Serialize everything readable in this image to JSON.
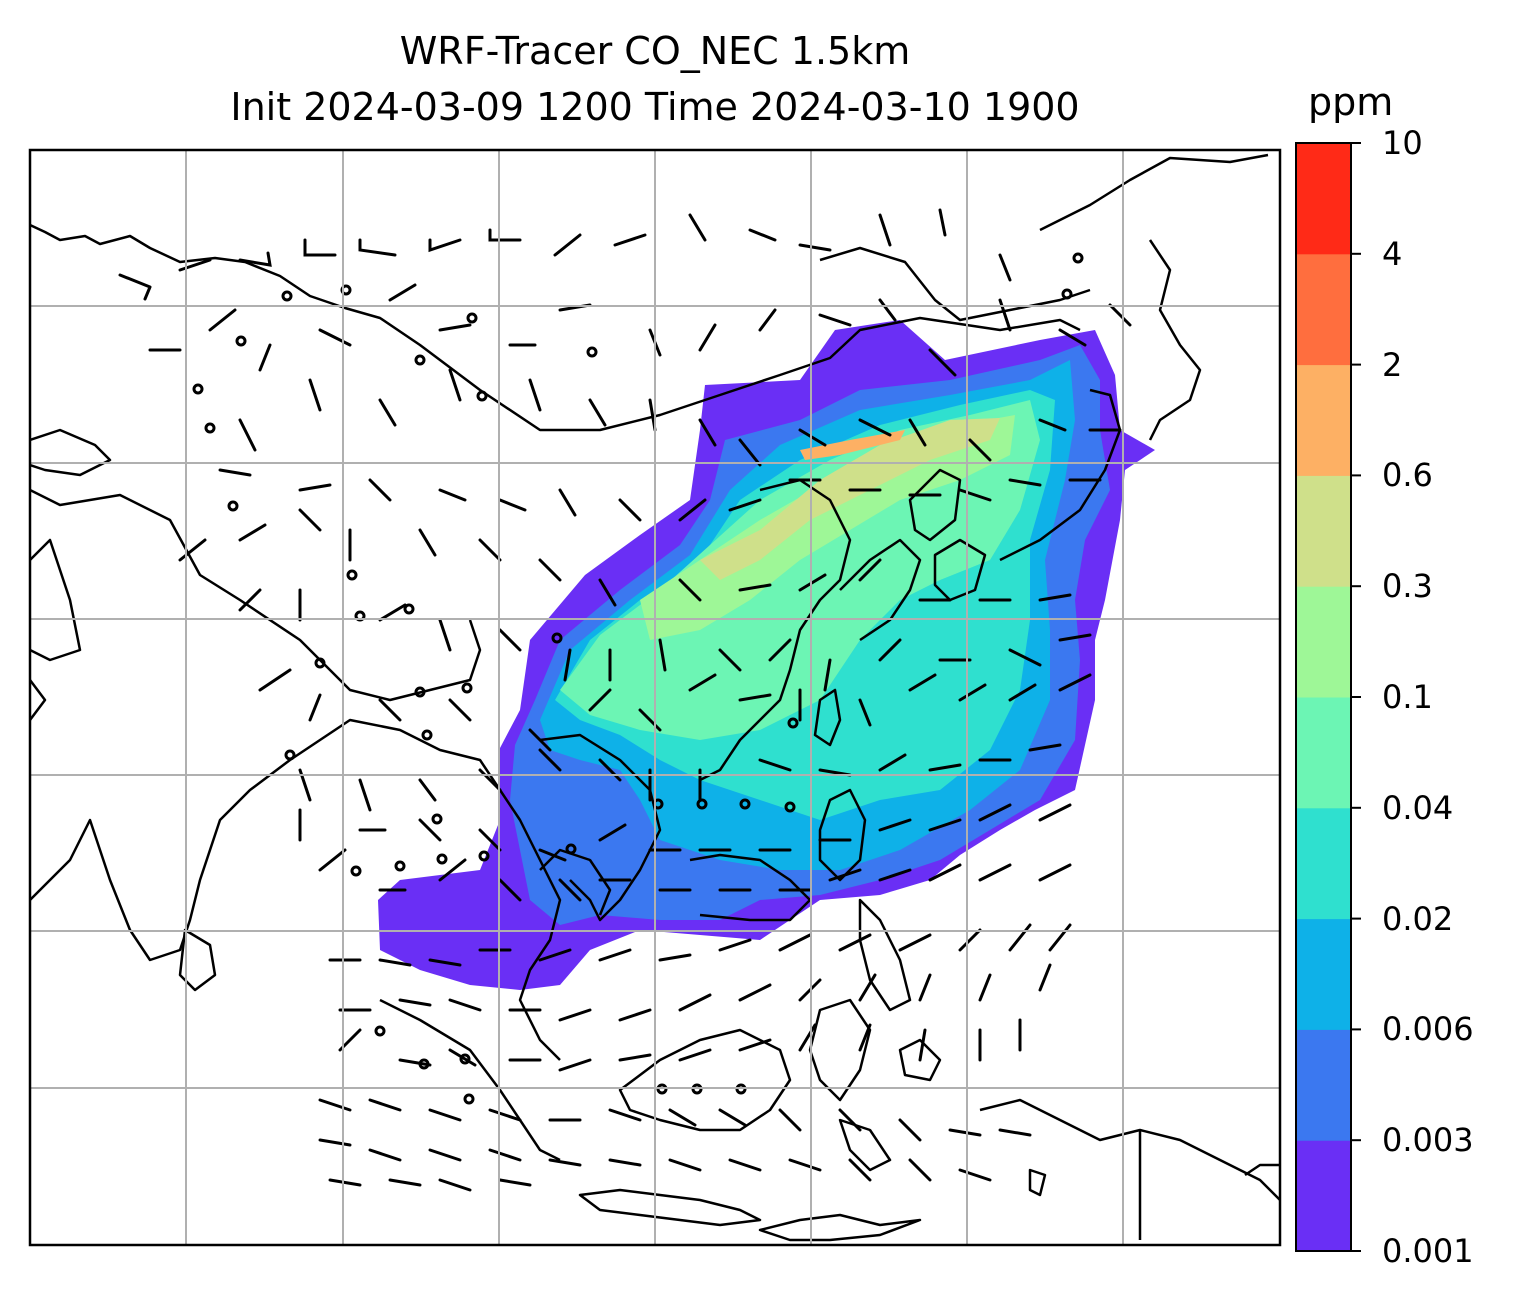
{
  "title": {
    "line1": "WRF-Tracer CO_NEC 1.5km",
    "line2": "Init 2024-03-09 1200 Time 2024-03-10 1900"
  },
  "colorbar": {
    "unit": "ppm",
    "levels": [
      "0.001",
      "0.003",
      "0.006",
      "0.02",
      "0.04",
      "0.1",
      "0.3",
      "0.6",
      "2",
      "4",
      "10"
    ],
    "colors": [
      "#6a2ff5",
      "#3b78f0",
      "#0eb1e8",
      "#2fe0cf",
      "#6cf5b4",
      "#9ef797",
      "#cfe08a",
      "#fdb064",
      "#ff6e3e",
      "#ff2a17"
    ]
  },
  "map": {
    "field": "CO_NEC tracer concentration",
    "gridlines": true,
    "overlay": "wind barbs",
    "coastlines": true
  }
}
